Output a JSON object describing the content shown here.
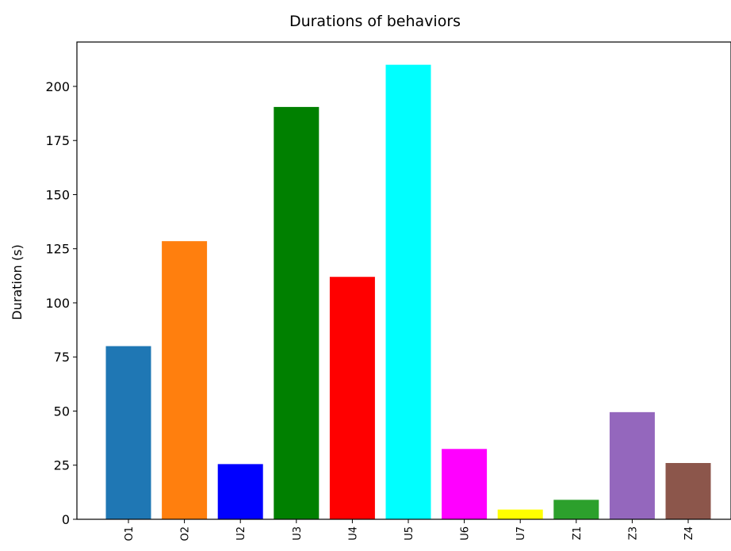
{
  "chart_data": {
    "type": "bar",
    "title": "Durations of behaviors",
    "xlabel": "",
    "ylabel": "Duration (s)",
    "categories": [
      "O1",
      "O2",
      "U2",
      "U3",
      "U4",
      "U5",
      "U6",
      "U7",
      "Z1",
      "Z3",
      "Z4"
    ],
    "values": [
      80,
      128.5,
      25.5,
      190.5,
      112,
      210,
      32.5,
      4.5,
      9,
      49.5,
      26
    ],
    "colors": [
      "#1f77b4",
      "#ff7f0e",
      "#0000ff",
      "#008000",
      "#ff0000",
      "#00ffff",
      "#ff00ff",
      "#ffff00",
      "#2ca02c",
      "#9467bd",
      "#8c564b"
    ],
    "yticks": [
      0,
      25,
      50,
      75,
      100,
      125,
      150,
      175,
      200
    ],
    "ylim": [
      0,
      220.5
    ],
    "grid": false
  }
}
